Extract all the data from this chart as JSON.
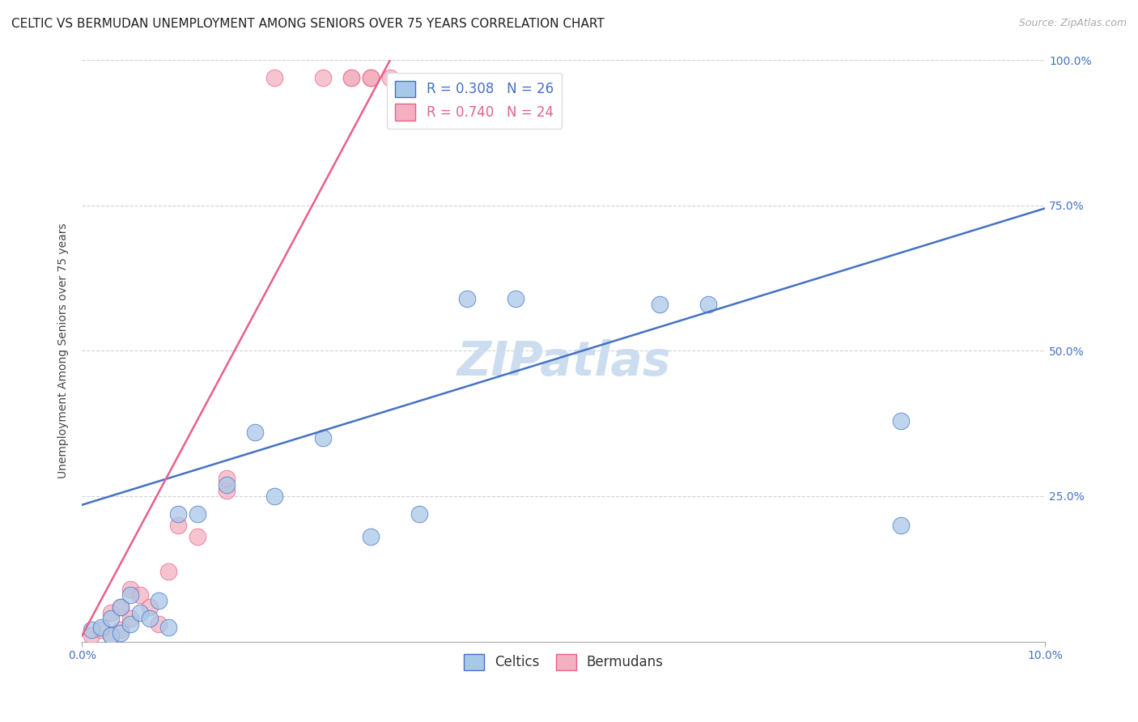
{
  "title": "CELTIC VS BERMUDAN UNEMPLOYMENT AMONG SENIORS OVER 75 YEARS CORRELATION CHART",
  "source": "Source: ZipAtlas.com",
  "ylabel": "Unemployment Among Seniors over 75 years",
  "xlim": [
    0.0,
    0.1
  ],
  "ylim": [
    0.0,
    1.0
  ],
  "xticks": [
    0.0,
    0.1
  ],
  "yticks": [
    0.25,
    0.5,
    0.75,
    1.0
  ],
  "xtick_labels": [
    "0.0%",
    "10.0%"
  ],
  "ytick_labels_right": [
    "25.0%",
    "50.0%",
    "75.0%",
    "100.0%"
  ],
  "celtic_color": "#a8c8e8",
  "bermudan_color": "#f4b0c0",
  "celtic_line_color": "#4472c4",
  "bermudan_line_color": "#e8608a",
  "R_celtic": 0.308,
  "N_celtic": 26,
  "R_bermudan": 0.74,
  "N_bermudan": 24,
  "legend_label_celtic": "Celtics",
  "legend_label_bermudan": "Bermudans",
  "watermark": "ZIPatlas",
  "celtic_x": [
    0.001,
    0.002,
    0.003,
    0.003,
    0.004,
    0.004,
    0.005,
    0.005,
    0.006,
    0.007,
    0.008,
    0.009,
    0.01,
    0.012,
    0.015,
    0.018,
    0.02,
    0.025,
    0.03,
    0.035,
    0.04,
    0.045,
    0.06,
    0.065,
    0.085,
    0.085
  ],
  "celtic_y": [
    0.02,
    0.025,
    0.01,
    0.04,
    0.015,
    0.06,
    0.03,
    0.08,
    0.05,
    0.04,
    0.07,
    0.025,
    0.22,
    0.22,
    0.27,
    0.36,
    0.25,
    0.35,
    0.18,
    0.22,
    0.59,
    0.59,
    0.58,
    0.58,
    0.2,
    0.38
  ],
  "bermudan_x": [
    0.001,
    0.002,
    0.003,
    0.003,
    0.004,
    0.004,
    0.005,
    0.005,
    0.006,
    0.007,
    0.008,
    0.009,
    0.01,
    0.012,
    0.015,
    0.015,
    0.02,
    0.025,
    0.028,
    0.028,
    0.03,
    0.03,
    0.03,
    0.032
  ],
  "bermudan_y": [
    0.01,
    0.02,
    0.01,
    0.05,
    0.02,
    0.06,
    0.04,
    0.09,
    0.08,
    0.06,
    0.03,
    0.12,
    0.2,
    0.18,
    0.26,
    0.28,
    0.97,
    0.97,
    0.97,
    0.97,
    0.97,
    0.97,
    0.97,
    0.97
  ],
  "blue_line_x0": 0.0,
  "blue_line_y0": 0.235,
  "blue_line_x1": 0.1,
  "blue_line_y1": 0.745,
  "pink_line_x0": 0.0,
  "pink_line_y0": 0.01,
  "pink_line_x1": 0.032,
  "pink_line_y1": 1.0,
  "background_color": "#ffffff",
  "grid_color": "#cccccc",
  "title_fontsize": 11,
  "axis_label_fontsize": 10,
  "tick_fontsize": 10,
  "legend_fontsize": 12,
  "source_fontsize": 9,
  "watermark_fontsize": 42,
  "watermark_color": "#ccddf0",
  "tick_color": "#4472c4"
}
